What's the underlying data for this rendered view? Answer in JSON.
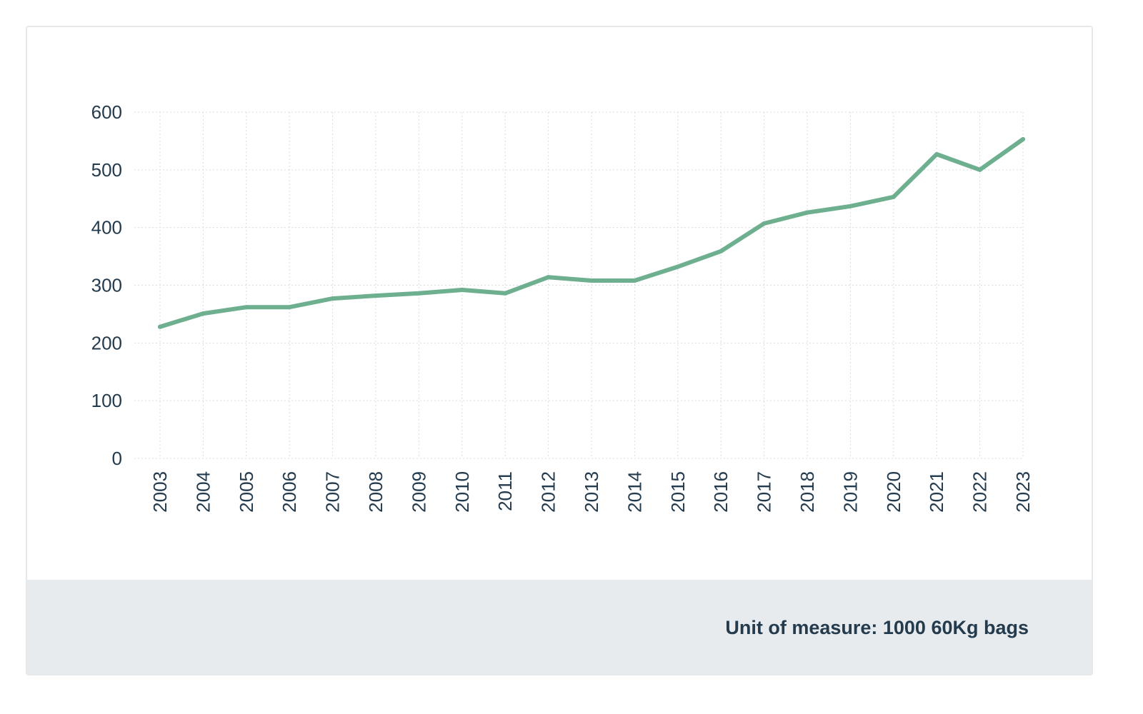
{
  "chart_data": {
    "type": "line",
    "x": [
      "2003",
      "2004",
      "2005",
      "2006",
      "2007",
      "2008",
      "2009",
      "2010",
      "2011",
      "2012",
      "2013",
      "2014",
      "2015",
      "2016",
      "2017",
      "2018",
      "2019",
      "2020",
      "2021",
      "2022",
      "2023"
    ],
    "series": [
      {
        "values": [
          228,
          251,
          262,
          262,
          277,
          282,
          286,
          292,
          286,
          314,
          308,
          308,
          332,
          359,
          407,
          426,
          437,
          453,
          527,
          500,
          553
        ]
      }
    ],
    "ylim": [
      0,
      600
    ],
    "yticks": [
      0,
      100,
      200,
      300,
      400,
      500,
      600
    ],
    "grid": true,
    "line_color": "#6daf8e",
    "text_color": "#243b4e"
  },
  "footer": {
    "unit_text": "Unit of measure: 1000 60Kg bags"
  }
}
